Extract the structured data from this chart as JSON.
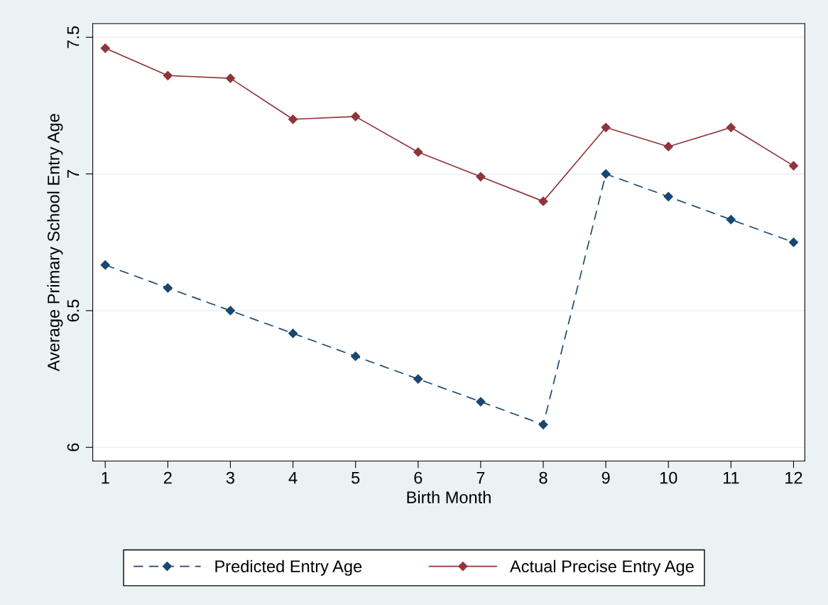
{
  "chart_data": {
    "type": "line",
    "xlabel": "Birth Month",
    "ylabel": "Average Primary School Entry Age",
    "x": [
      1,
      2,
      3,
      4,
      5,
      6,
      7,
      8,
      9,
      10,
      11,
      12
    ],
    "series": [
      {
        "name": "Predicted Entry Age",
        "color": "#1a476f",
        "line_style": "dashed",
        "values": [
          6.667,
          6.583,
          6.5,
          6.417,
          6.333,
          6.25,
          6.167,
          6.083,
          7.0,
          6.917,
          6.833,
          6.75
        ]
      },
      {
        "name": "Actual Precise Entry Age",
        "color": "#90353b",
        "line_style": "solid",
        "values": [
          7.46,
          7.36,
          7.35,
          7.2,
          7.21,
          7.08,
          6.99,
          6.9,
          7.17,
          7.1,
          7.17,
          7.03
        ]
      }
    ],
    "xlim": [
      0.8,
      12.18
    ],
    "ylim": [
      5.95,
      7.55
    ],
    "xticks": [
      1,
      2,
      3,
      4,
      5,
      6,
      7,
      8,
      9,
      10,
      11,
      12
    ],
    "yticks": [
      6,
      6.5,
      7,
      7.5
    ],
    "grid": "y",
    "legend": "bottom",
    "marker": "diamond"
  }
}
